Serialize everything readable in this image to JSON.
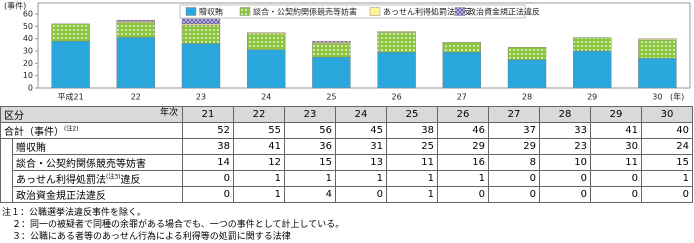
{
  "chart_data": {
    "type": "bar",
    "stacked": true,
    "y_label": "(事件)",
    "x_unit": "(年)",
    "categories": [
      "平成21",
      "22",
      "23",
      "24",
      "25",
      "26",
      "27",
      "28",
      "29",
      "30"
    ],
    "series": [
      {
        "name": "贈収賄",
        "color": "#2aa7dc",
        "pattern": "solid",
        "values": [
          38,
          41,
          36,
          31,
          25,
          29,
          29,
          23,
          30,
          24
        ]
      },
      {
        "name": "談合・公契約関係競売等妨害",
        "color": "#8cc63f",
        "pattern": "dots",
        "values": [
          14,
          12,
          15,
          13,
          11,
          16,
          8,
          10,
          11,
          15
        ]
      },
      {
        "name": "あっせん利得処罰法違反",
        "color": "#fff39a",
        "pattern": "solid",
        "values": [
          0,
          1,
          1,
          1,
          1,
          1,
          0,
          0,
          0,
          1
        ]
      },
      {
        "name": "政治資金規正法違反",
        "color": "#b9b2e0",
        "pattern": "cross",
        "values": [
          0,
          1,
          4,
          0,
          1,
          0,
          0,
          0,
          0,
          0
        ]
      }
    ],
    "ylim": [
      0,
      60
    ],
    "yticks": [
      0,
      10,
      20,
      30,
      40,
      50,
      60
    ],
    "grid": false,
    "legend": "top"
  },
  "table": {
    "corner_row": "区分",
    "corner_col": "年次",
    "columns": [
      "21",
      "22",
      "23",
      "24",
      "25",
      "26",
      "27",
      "28",
      "29",
      "30"
    ],
    "total_label": [
      "合計（事件）",
      "(注2)"
    ],
    "totals": [
      52,
      55,
      56,
      45,
      38,
      46,
      37,
      33,
      41,
      40
    ],
    "row_labels": [
      [
        "贈収賄"
      ],
      [
        "談合・公契約関係競売等妨害"
      ],
      [
        "あっせん利得処罰法",
        "(注3)",
        "違反"
      ],
      [
        "政治資金規正法違反"
      ]
    ]
  },
  "notes": [
    "注１：公職選挙法違反事件を除く。",
    "２：同一の被疑者で同種の余罪がある場合でも、一つの事件として計上している。",
    "３：公職にある者等のあっせん行為による利得等の処罰に関する法律"
  ]
}
